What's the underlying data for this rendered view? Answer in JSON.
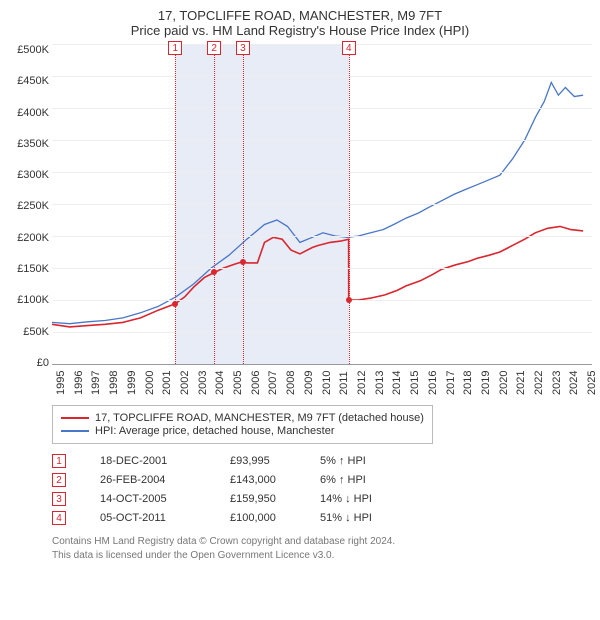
{
  "title": {
    "line1": "17, TOPCLIFFE ROAD, MANCHESTER, M9 7FT",
    "line2": "Price paid vs. HM Land Registry's House Price Index (HPI)",
    "fontsize": 13
  },
  "chart": {
    "type": "line",
    "background_color": "#ffffff",
    "grid_color": "#eeeeee",
    "axis_color": "#999999",
    "label_fontsize": 11,
    "ylim": [
      0,
      500000
    ],
    "ytick_step": 50000,
    "yticks": [
      "£0",
      "£50K",
      "£100K",
      "£150K",
      "£200K",
      "£250K",
      "£300K",
      "£350K",
      "£400K",
      "£450K",
      "£500K"
    ],
    "xlim": [
      1995,
      2025.5
    ],
    "xticks": [
      1995,
      1996,
      1997,
      1998,
      1999,
      2000,
      2001,
      2002,
      2003,
      2004,
      2005,
      2006,
      2007,
      2008,
      2009,
      2010,
      2011,
      2012,
      2013,
      2014,
      2015,
      2016,
      2017,
      2018,
      2019,
      2020,
      2021,
      2022,
      2023,
      2024,
      2025
    ],
    "bands": [
      {
        "from": 2001.96,
        "to": 2004.16,
        "color": "#e7ecf6"
      },
      {
        "from": 2004.16,
        "to": 2005.78,
        "color": "#e7ecf6"
      },
      {
        "from": 2005.78,
        "to": 2011.76,
        "color": "#e7ecf6"
      }
    ],
    "sale_markers": [
      {
        "n": "1",
        "x": 2001.96,
        "color": "#d9262f"
      },
      {
        "n": "2",
        "x": 2004.16,
        "color": "#d9262f"
      },
      {
        "n": "3",
        "x": 2005.78,
        "color": "#d9262f"
      },
      {
        "n": "4",
        "x": 2011.76,
        "color": "#d9262f"
      }
    ],
    "series": [
      {
        "name": "price_paid",
        "label": "17, TOPCLIFFE ROAD, MANCHESTER, M9 7FT (detached house)",
        "color": "#d9262f",
        "line_width": 1.6,
        "points": [
          [
            1995.0,
            62000
          ],
          [
            1996.0,
            58000
          ],
          [
            1997.0,
            60000
          ],
          [
            1998.0,
            62000
          ],
          [
            1999.0,
            65000
          ],
          [
            2000.0,
            72000
          ],
          [
            2001.0,
            84000
          ],
          [
            2001.96,
            93995
          ],
          [
            2002.5,
            105000
          ],
          [
            2003.0,
            120000
          ],
          [
            2003.6,
            135000
          ],
          [
            2004.16,
            143000
          ],
          [
            2004.7,
            150000
          ],
          [
            2005.3,
            156000
          ],
          [
            2005.78,
            159950
          ],
          [
            2006.0,
            158000
          ],
          [
            2006.6,
            158000
          ],
          [
            2007.0,
            190000
          ],
          [
            2007.5,
            198000
          ],
          [
            2008.0,
            195000
          ],
          [
            2008.5,
            178000
          ],
          [
            2009.0,
            172000
          ],
          [
            2009.7,
            182000
          ],
          [
            2010.0,
            185000
          ],
          [
            2010.7,
            190000
          ],
          [
            2011.3,
            192000
          ],
          [
            2011.75,
            195000
          ],
          [
            2011.76,
            100000
          ],
          [
            2012.3,
            100000
          ],
          [
            2013.0,
            103000
          ],
          [
            2013.8,
            108000
          ],
          [
            2014.5,
            115000
          ],
          [
            2015.0,
            122000
          ],
          [
            2015.8,
            130000
          ],
          [
            2016.5,
            140000
          ],
          [
            2017.0,
            148000
          ],
          [
            2017.8,
            155000
          ],
          [
            2018.5,
            160000
          ],
          [
            2019.0,
            165000
          ],
          [
            2019.7,
            170000
          ],
          [
            2020.3,
            175000
          ],
          [
            2021.0,
            185000
          ],
          [
            2021.7,
            195000
          ],
          [
            2022.3,
            205000
          ],
          [
            2023.0,
            212000
          ],
          [
            2023.7,
            215000
          ],
          [
            2024.3,
            210000
          ],
          [
            2025.0,
            208000
          ]
        ],
        "sale_dots": [
          {
            "x": 2001.96,
            "y": 93995
          },
          {
            "x": 2004.16,
            "y": 143000
          },
          {
            "x": 2005.78,
            "y": 159950
          },
          {
            "x": 2011.76,
            "y": 100000
          }
        ]
      },
      {
        "name": "hpi",
        "label": "HPI: Average price, detached house, Manchester",
        "color": "#4a76c7",
        "line_width": 1.3,
        "points": [
          [
            1995.0,
            65000
          ],
          [
            1996.0,
            63000
          ],
          [
            1997.0,
            66000
          ],
          [
            1998.0,
            68000
          ],
          [
            1999.0,
            72000
          ],
          [
            2000.0,
            80000
          ],
          [
            2001.0,
            90000
          ],
          [
            2002.0,
            105000
          ],
          [
            2003.0,
            125000
          ],
          [
            2004.0,
            150000
          ],
          [
            2005.0,
            170000
          ],
          [
            2006.0,
            195000
          ],
          [
            2007.0,
            218000
          ],
          [
            2007.7,
            225000
          ],
          [
            2008.3,
            215000
          ],
          [
            2009.0,
            190000
          ],
          [
            2009.7,
            198000
          ],
          [
            2010.3,
            205000
          ],
          [
            2011.0,
            200000
          ],
          [
            2011.7,
            198000
          ],
          [
            2012.3,
            200000
          ],
          [
            2013.0,
            205000
          ],
          [
            2013.7,
            210000
          ],
          [
            2014.3,
            218000
          ],
          [
            2015.0,
            228000
          ],
          [
            2015.7,
            236000
          ],
          [
            2016.3,
            245000
          ],
          [
            2017.0,
            255000
          ],
          [
            2017.7,
            265000
          ],
          [
            2018.3,
            272000
          ],
          [
            2019.0,
            280000
          ],
          [
            2019.7,
            288000
          ],
          [
            2020.3,
            295000
          ],
          [
            2021.0,
            320000
          ],
          [
            2021.7,
            350000
          ],
          [
            2022.3,
            385000
          ],
          [
            2022.8,
            410000
          ],
          [
            2023.2,
            440000
          ],
          [
            2023.6,
            420000
          ],
          [
            2024.0,
            432000
          ],
          [
            2024.5,
            418000
          ],
          [
            2025.0,
            420000
          ]
        ]
      }
    ]
  },
  "legend": {
    "items": [
      {
        "color": "#d9262f",
        "label": "17, TOPCLIFFE ROAD, MANCHESTER, M9 7FT (detached house)"
      },
      {
        "color": "#4a76c7",
        "label": "HPI: Average price, detached house, Manchester"
      }
    ]
  },
  "sales": [
    {
      "n": "1",
      "color": "#d9262f",
      "date": "18-DEC-2001",
      "price": "£93,995",
      "diff": "5% ↑ HPI"
    },
    {
      "n": "2",
      "color": "#d9262f",
      "date": "26-FEB-2004",
      "price": "£143,000",
      "diff": "6% ↑ HPI"
    },
    {
      "n": "3",
      "color": "#d9262f",
      "date": "14-OCT-2005",
      "price": "£159,950",
      "diff": "14% ↓ HPI"
    },
    {
      "n": "4",
      "color": "#d9262f",
      "date": "05-OCT-2011",
      "price": "£100,000",
      "diff": "51% ↓ HPI"
    }
  ],
  "footer": {
    "line1": "Contains HM Land Registry data © Crown copyright and database right 2024.",
    "line2": "This data is licensed under the Open Government Licence v3.0."
  }
}
